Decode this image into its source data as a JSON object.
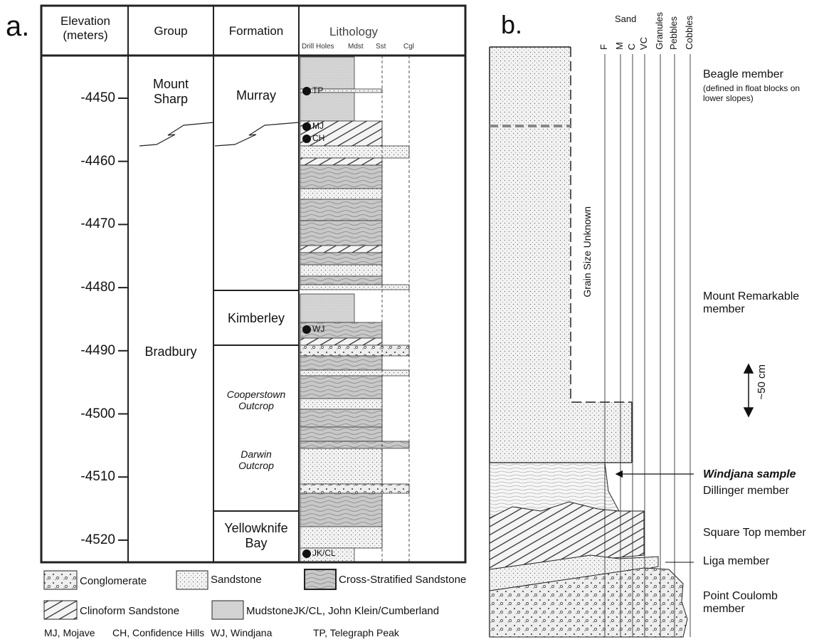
{
  "panel_a": {
    "label": "a.",
    "headers": [
      "Elevation (meters)",
      "Group",
      "Formation",
      "Lithology"
    ],
    "lithology_columns": [
      "Drill Holes",
      "Mdst",
      "Sst",
      "Cgl"
    ],
    "elevation_ticks": [
      -4450,
      -4460,
      -4470,
      -4480,
      -4490,
      -4500,
      -4510,
      -4520
    ],
    "groups": [
      "Mount Sharp",
      "Bradbury"
    ],
    "formations": [
      "Murray",
      "Kimberley",
      "Cooperstown Outcrop",
      "Darwin Outcrop",
      "Yellowknife Bay"
    ],
    "drill_holes": [
      "TP",
      "MJ",
      "CH",
      "WJ",
      "JK/CL"
    ],
    "legend": [
      "Conglomerate",
      "Sandstone",
      "Cross-Stratified Sandstone",
      "Clinoform Sandstone",
      "Mudstone",
      "JK/CL, John Klein/Cumberland",
      "MJ, Mojave",
      "CH, Confidence Hills",
      "WJ, Windjana",
      "TP, Telegraph Peak"
    ]
  },
  "panel_b": {
    "label": "b.",
    "grain_size_header": "Sand",
    "grain_sizes": [
      "F",
      "M",
      "C",
      "VC",
      "Granules",
      "Pebbles",
      "Cobbles"
    ],
    "unknown_label": "Grain Size Unknown",
    "scale_label": "~50 cm",
    "beagle": "Beagle member",
    "beagle_note": "(defined in float blocks on lower slopes)",
    "mount_remarkable": "Mount Remarkable member",
    "sample": "Windjana sample",
    "dillinger": "Dillinger member",
    "square_top": "Square Top member",
    "liga": "Liga member",
    "point_coulomb": "Point Coulomb member"
  }
}
